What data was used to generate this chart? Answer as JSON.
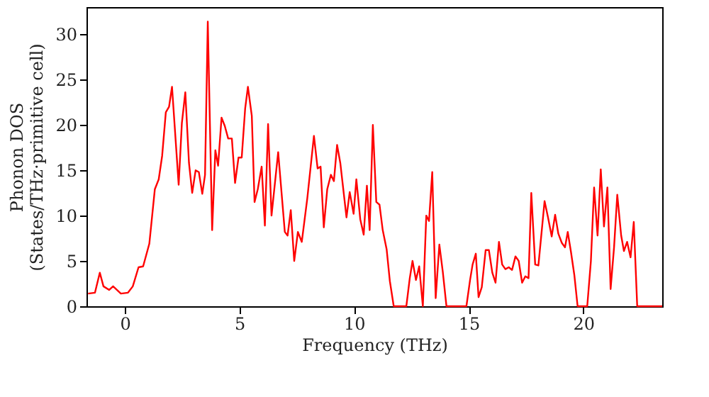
{
  "chart_data": {
    "type": "line",
    "xlabel": "Frequency (THz)",
    "ylabel": "Phonon DOS\n(States/THz·primitive cell)",
    "xlim": [
      -1.67,
      23.44
    ],
    "ylim": [
      0,
      33
    ],
    "xticks": [
      0,
      5,
      10,
      15,
      20
    ],
    "yticks": [
      0,
      5,
      10,
      15,
      20,
      25,
      30
    ],
    "grid": false,
    "legend": false,
    "marker": "none",
    "line_style": "solid",
    "series": [
      {
        "color": "#ff0000",
        "x": [
          -1.6,
          -1.3,
          -1.09,
          -0.93,
          -0.68,
          -0.51,
          -0.17,
          0.14,
          0.35,
          0.6,
          0.8,
          1.07,
          1.31,
          1.48,
          1.63,
          1.79,
          1.93,
          2.06,
          2.35,
          2.49,
          2.64,
          2.8,
          2.94,
          3.09,
          3.23,
          3.38,
          3.5,
          3.62,
          3.81,
          3.95,
          4.07,
          4.22,
          4.36,
          4.51,
          4.67,
          4.81,
          4.96,
          5.1,
          5.25,
          5.37,
          5.54,
          5.66,
          5.8,
          5.97,
          6.11,
          6.25,
          6.4,
          6.69,
          6.98,
          7.1,
          7.24,
          7.39,
          7.55,
          7.72,
          7.96,
          8.25,
          8.41,
          8.54,
          8.68,
          8.83,
          8.99,
          9.12,
          9.26,
          9.4,
          9.67,
          9.81,
          9.98,
          10.1,
          10.27,
          10.42,
          10.56,
          10.68,
          10.82,
          10.97,
          11.11,
          11.25,
          11.42,
          11.56,
          11.73,
          12.28,
          12.43,
          12.55,
          12.7,
          12.84,
          13.0,
          13.15,
          13.27,
          13.41,
          13.56,
          13.72,
          13.87,
          14.03,
          14.9,
          15.06,
          15.17,
          15.31,
          15.43,
          15.57,
          15.74,
          15.88,
          16.03,
          16.17,
          16.32,
          16.46,
          16.6,
          16.75,
          16.89,
          17.04,
          17.18,
          17.33,
          17.47,
          17.61,
          17.73,
          17.9,
          18.04,
          18.31,
          18.46,
          18.62,
          18.77,
          18.91,
          19.06,
          19.2,
          19.32,
          19.46,
          19.61,
          19.75,
          20.17,
          20.33,
          20.47,
          20.62,
          20.76,
          20.9,
          21.05,
          21.19,
          21.34,
          21.48,
          21.65,
          21.77,
          21.91,
          22.06,
          22.2,
          22.35,
          23.44
        ],
        "values": [
          1.4,
          1.5,
          3.7,
          2.2,
          1.8,
          2.2,
          1.4,
          1.5,
          2.2,
          4.3,
          4.4,
          6.9,
          12.9,
          14,
          16.6,
          21.4,
          22,
          24.2,
          13.4,
          20.2,
          23.6,
          15.8,
          12.5,
          15,
          14.8,
          12.4,
          14.5,
          31.4,
          8.4,
          17.2,
          15.5,
          20.8,
          19.9,
          18.5,
          18.5,
          13.6,
          16.4,
          16.4,
          21.8,
          24.2,
          21,
          11.5,
          12.9,
          15.4,
          8.9,
          20.1,
          10,
          17,
          8.2,
          7.8,
          10.6,
          5,
          8.2,
          7.1,
          11.9,
          18.8,
          15.2,
          15.4,
          8.7,
          12.9,
          14.5,
          13.8,
          17.8,
          15.8,
          9.8,
          12.6,
          10.2,
          14,
          9.6,
          7.9,
          13.3,
          8.4,
          20,
          11.5,
          11.2,
          8.4,
          6.3,
          2.8,
          0,
          0,
          3.1,
          5,
          2.9,
          4.4,
          0,
          10,
          9.4,
          14.8,
          0.9,
          6.8,
          3.8,
          0,
          0,
          2.9,
          4.6,
          5.8,
          1,
          2.1,
          6.2,
          6.2,
          3.7,
          2.6,
          7.1,
          4.6,
          4.1,
          4.3,
          4,
          5.5,
          5,
          2.6,
          3.3,
          3.1,
          12.5,
          4.6,
          4.5,
          11.6,
          9.8,
          7.7,
          10.1,
          8,
          7,
          6.5,
          8.2,
          6,
          3.4,
          0,
          0,
          5,
          13.1,
          7.8,
          15.1,
          8.8,
          13.1,
          1.9,
          6.5,
          12.3,
          7.8,
          6.1,
          7.1,
          5.4,
          9.3,
          0,
          0
        ]
      }
    ]
  }
}
